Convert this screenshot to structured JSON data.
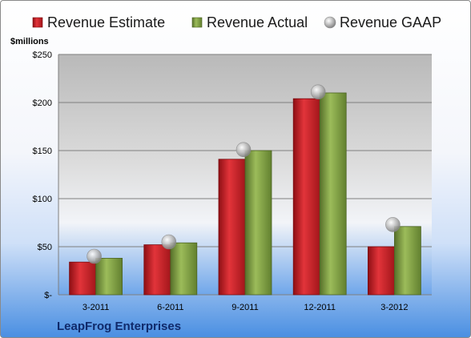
{
  "chart_data": {
    "type": "bar",
    "categories": [
      "3-2011",
      "6-2011",
      "9-2011",
      "12-2011",
      "3-2012"
    ],
    "series": [
      {
        "name": "Revenue Estimate",
        "kind": "bar",
        "color": "#cc1f25",
        "values": [
          34,
          52,
          141,
          204,
          50
        ]
      },
      {
        "name": "Revenue Actual",
        "kind": "bar",
        "color": "#7a9a3a",
        "values": [
          38,
          54,
          150,
          210,
          71
        ]
      },
      {
        "name": "Revenue GAAP",
        "kind": "marker",
        "color": "#b5b5b5",
        "values": [
          40,
          55,
          151,
          211,
          73
        ]
      }
    ],
    "ylabel": "$millions",
    "ylim": [
      0,
      250
    ],
    "yticks": [
      {
        "value": 0,
        "label": "$-"
      },
      {
        "value": 50,
        "label": "$50"
      },
      {
        "value": 100,
        "label": "$100"
      },
      {
        "value": 150,
        "label": "$150"
      },
      {
        "value": 200,
        "label": "$200"
      },
      {
        "value": 250,
        "label": "$250"
      }
    ],
    "grid": true,
    "legend_position": "top",
    "footer": "LeapFrog Enterprises"
  }
}
